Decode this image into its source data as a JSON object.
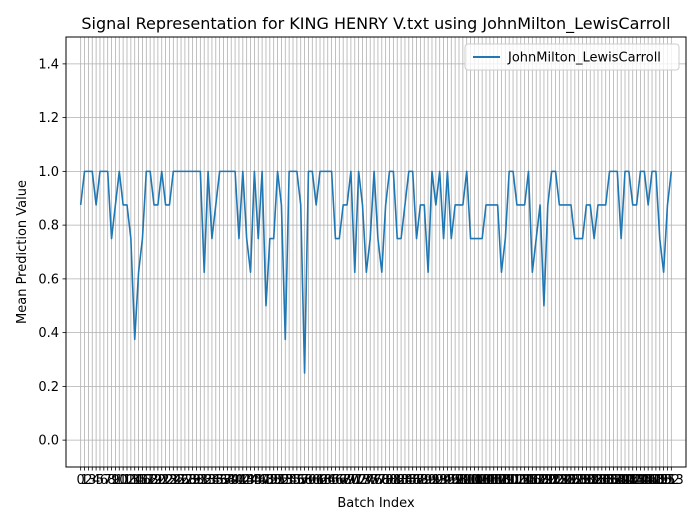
{
  "chart_data": {
    "type": "line",
    "title": "Signal Representation for KING HENRY V.txt using JohnMilton_LewisCarroll",
    "xlabel": "Batch Index",
    "ylabel": "Mean Prediction Value",
    "xlim": [
      -3.8,
      156.8
    ],
    "ylim": [
      -0.1,
      1.5
    ],
    "yticks": [
      0.0,
      0.2,
      0.4,
      0.6,
      0.8,
      1.0,
      1.2,
      1.4
    ],
    "ytick_labels": [
      "0.0",
      "0.2",
      "0.4",
      "0.6",
      "0.8",
      "1.0",
      "1.2",
      "1.4"
    ],
    "grid": true,
    "legend_position": "top-right",
    "colors": {
      "series": "#1f77b4",
      "grid": "#b0b0b0",
      "axis": "#000000"
    },
    "series": [
      {
        "name": "JohnMilton_LewisCarroll",
        "x": [
          0,
          1,
          2,
          3,
          4,
          5,
          6,
          7,
          8,
          9,
          10,
          11,
          12,
          13,
          14,
          15,
          16,
          17,
          18,
          19,
          20,
          21,
          22,
          23,
          24,
          25,
          26,
          27,
          28,
          29,
          30,
          31,
          32,
          33,
          34,
          35,
          36,
          37,
          38,
          39,
          40,
          41,
          42,
          43,
          44,
          45,
          46,
          47,
          48,
          49,
          50,
          51,
          52,
          53,
          54,
          55,
          56,
          57,
          58,
          59,
          60,
          61,
          62,
          63,
          64,
          65,
          66,
          67,
          68,
          69,
          70,
          71,
          72,
          73,
          74,
          75,
          76,
          77,
          78,
          79,
          80,
          81,
          82,
          83,
          84,
          85,
          86,
          87,
          88,
          89,
          90,
          91,
          92,
          93,
          94,
          95,
          96,
          97,
          98,
          99,
          100,
          101,
          102,
          103,
          104,
          105,
          106,
          107,
          108,
          109,
          110,
          111,
          112,
          113,
          114,
          115,
          116,
          117,
          118,
          119,
          120,
          121,
          122,
          123,
          124,
          125,
          126,
          127,
          128,
          129,
          130,
          131,
          132,
          133,
          134,
          135,
          136,
          137,
          138,
          139,
          140,
          141,
          142,
          143,
          144,
          145,
          146,
          147,
          148,
          149,
          150,
          151,
          152,
          153
        ],
        "values": [
          0.875,
          1.0,
          1.0,
          1.0,
          0.875,
          1.0,
          1.0,
          1.0,
          0.75,
          0.875,
          1.0,
          0.875,
          0.875,
          0.75,
          0.375,
          0.625,
          0.75,
          1.0,
          1.0,
          0.875,
          0.875,
          1.0,
          0.875,
          0.875,
          1.0,
          1.0,
          1.0,
          1.0,
          1.0,
          1.0,
          1.0,
          1.0,
          0.625,
          1.0,
          0.75,
          0.875,
          1.0,
          1.0,
          1.0,
          1.0,
          1.0,
          0.75,
          1.0,
          0.75,
          0.625,
          1.0,
          0.75,
          1.0,
          0.5,
          0.75,
          0.75,
          1.0,
          0.875,
          0.375,
          1.0,
          1.0,
          1.0,
          0.875,
          0.25,
          1.0,
          1.0,
          0.875,
          1.0,
          1.0,
          1.0,
          1.0,
          0.75,
          0.75,
          0.875,
          0.875,
          1.0,
          0.625,
          1.0,
          0.875,
          0.625,
          0.75,
          1.0,
          0.75,
          0.625,
          0.875,
          1.0,
          1.0,
          0.75,
          0.75,
          0.875,
          1.0,
          1.0,
          0.75,
          0.875,
          0.875,
          0.625,
          1.0,
          0.875,
          1.0,
          0.75,
          1.0,
          0.75,
          0.875,
          0.875,
          0.875,
          1.0,
          0.75,
          0.75,
          0.75,
          0.75,
          0.875,
          0.875,
          0.875,
          0.875,
          0.625,
          0.75,
          1.0,
          1.0,
          0.875,
          0.875,
          0.875,
          1.0,
          0.625,
          0.75,
          0.875,
          0.5,
          0.875,
          1.0,
          1.0,
          0.875,
          0.875,
          0.875,
          0.875,
          0.75,
          0.75,
          0.75,
          0.875,
          0.875,
          0.75,
          0.875,
          0.875,
          0.875,
          1.0,
          1.0,
          1.0,
          0.75,
          1.0,
          1.0,
          0.875,
          0.875,
          1.0,
          1.0,
          0.875,
          1.0,
          1.0,
          0.75,
          0.625,
          0.875,
          1.0
        ]
      }
    ]
  }
}
